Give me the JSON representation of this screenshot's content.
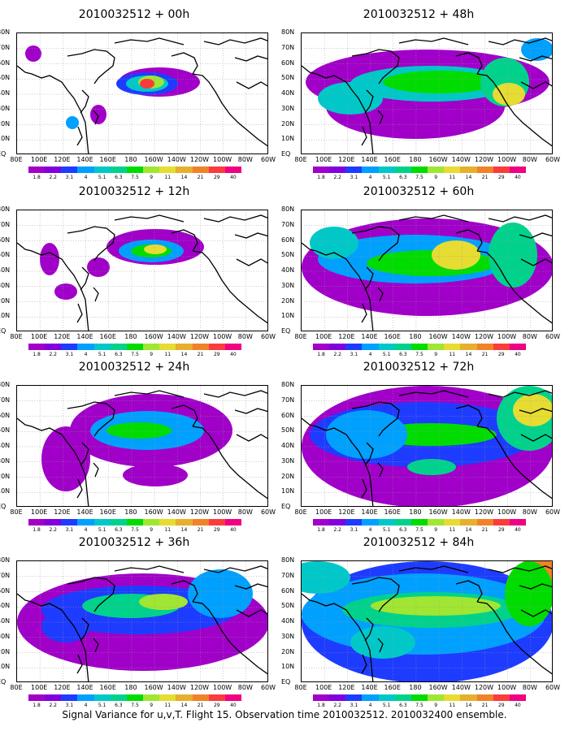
{
  "caption": "Signal Variance for u,v,T. Flight 15. Observation time 2010032512. 2010032400 ensemble.",
  "lat_labels": [
    "80N",
    "70N",
    "60N",
    "50N",
    "40N",
    "30N",
    "20N",
    "10N",
    "EQ"
  ],
  "lon_labels": [
    "80E",
    "100E",
    "120E",
    "140E",
    "160E",
    "180",
    "160W",
    "140W",
    "120W",
    "100W",
    "80W",
    "60W"
  ],
  "colorbar": {
    "labels": [
      "1.8",
      "2.2",
      "3.1",
      "4",
      "5.1",
      "6.3",
      "7.5",
      "9",
      "11",
      "14",
      "21",
      "29",
      "40"
    ],
    "colors": [
      "#a000c8",
      "#8200dc",
      "#1e3cff",
      "#00a0ff",
      "#00c8c8",
      "#00d28c",
      "#00dc00",
      "#a0e632",
      "#e6dc32",
      "#e6af2d",
      "#f08228",
      "#fa3c3c",
      "#f00082"
    ]
  },
  "panels": [
    {
      "title": "2010032512 + 00h"
    },
    {
      "title": "2010032512 + 48h"
    },
    {
      "title": "2010032512 + 12h"
    },
    {
      "title": "2010032512 + 60h"
    },
    {
      "title": "2010032512 + 24h"
    },
    {
      "title": "2010032512 + 72h"
    },
    {
      "title": "2010032512 + 36h"
    },
    {
      "title": "2010032512 + 84h"
    }
  ]
}
